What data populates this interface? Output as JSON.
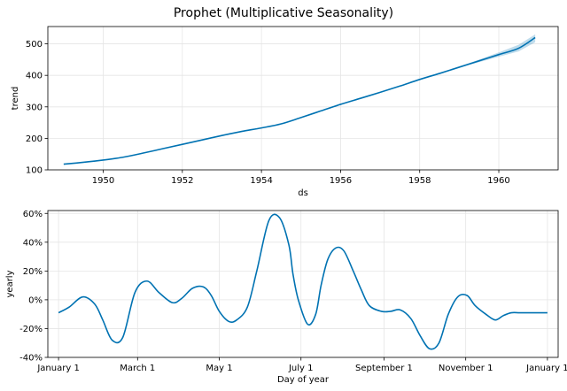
{
  "figure": {
    "title": "Prophet (Multiplicative Seasonality)",
    "accent_color": "#0072B2",
    "band_color": "#0072B2",
    "grid_color": "#e5e5e5"
  },
  "chart_data": [
    {
      "type": "line",
      "xlabel": "ds",
      "ylabel": "trend",
      "xlim": [
        1948.6,
        1961.5
      ],
      "ylim": [
        100,
        555
      ],
      "x_ticks": [
        {
          "v": 1950,
          "label": "1950"
        },
        {
          "v": 1952,
          "label": "1952"
        },
        {
          "v": 1954,
          "label": "1954"
        },
        {
          "v": 1956,
          "label": "1956"
        },
        {
          "v": 1958,
          "label": "1958"
        },
        {
          "v": 1960,
          "label": "1960"
        }
      ],
      "y_ticks": [
        {
          "v": 100,
          "label": "100"
        },
        {
          "v": 200,
          "label": "200"
        },
        {
          "v": 300,
          "label": "300"
        },
        {
          "v": 400,
          "label": "400"
        },
        {
          "v": 500,
          "label": "500"
        }
      ],
      "grid": true,
      "series": [
        {
          "x": [
            1949.0,
            1949.5,
            1950.0,
            1950.5,
            1951.0,
            1951.5,
            1952.0,
            1952.5,
            1953.0,
            1953.5,
            1954.0,
            1954.5,
            1955.0,
            1955.5,
            1956.0,
            1956.5,
            1957.0,
            1957.5,
            1958.0,
            1958.5,
            1959.0,
            1959.5,
            1960.0,
            1960.5,
            1960.92
          ],
          "values": [
            118,
            124,
            131,
            140,
            153,
            167,
            181,
            195,
            209,
            222,
            233,
            246,
            266,
            287,
            308,
            327,
            346,
            366,
            387,
            406,
            426,
            446,
            466,
            486,
            520
          ]
        }
      ],
      "uncertainty": {
        "x": [
          1958.5,
          1959.0,
          1959.5,
          1960.0,
          1960.5,
          1960.92
        ],
        "upper": [
          406,
          428,
          450,
          473,
          497,
          530
        ],
        "lower": [
          406,
          424,
          442,
          459,
          476,
          505
        ]
      }
    },
    {
      "type": "line",
      "xlabel": "Day of year",
      "ylabel": "yearly",
      "xlim": [
        -8,
        373
      ],
      "ylim": [
        -40,
        62
      ],
      "x_ticks": [
        {
          "v": 0,
          "label": "January 1"
        },
        {
          "v": 59,
          "label": "March 1"
        },
        {
          "v": 120,
          "label": "May 1"
        },
        {
          "v": 181,
          "label": "July 1"
        },
        {
          "v": 243,
          "label": "September 1"
        },
        {
          "v": 304,
          "label": "November 1"
        },
        {
          "v": 365,
          "label": "January 1"
        }
      ],
      "y_ticks": [
        {
          "v": -40,
          "label": "-40%"
        },
        {
          "v": -20,
          "label": "-20%"
        },
        {
          "v": 0,
          "label": "0%"
        },
        {
          "v": 20,
          "label": "20%"
        },
        {
          "v": 40,
          "label": "40%"
        },
        {
          "v": 60,
          "label": "60%"
        }
      ],
      "grid": true,
      "series": [
        {
          "x": [
            0,
            8,
            18,
            27,
            33,
            40,
            48,
            57,
            66,
            75,
            85,
            92,
            100,
            108,
            114,
            120,
            127,
            133,
            141,
            148,
            157,
            165,
            172,
            175,
            179,
            186,
            192,
            196,
            201,
            207,
            213,
            220,
            226,
            232,
            241,
            248,
            255,
            263,
            270,
            277,
            284,
            291,
            298,
            305,
            311,
            319,
            326,
            332,
            338,
            344,
            350,
            357,
            365
          ],
          "values": [
            -9,
            -5,
            2,
            -3,
            -14,
            -28,
            -26,
            5,
            13,
            5,
            -2,
            1,
            8,
            9,
            3,
            -8,
            -15,
            -14,
            -5,
            20,
            55,
            57,
            38,
            18,
            0,
            -17,
            -10,
            10,
            28,
            36,
            34,
            20,
            7,
            -4,
            -8,
            -8,
            -7,
            -13,
            -25,
            -34,
            -30,
            -10,
            2,
            3,
            -4,
            -10,
            -14,
            -11,
            -9,
            -9,
            -9,
            -9,
            -9
          ]
        }
      ]
    }
  ]
}
